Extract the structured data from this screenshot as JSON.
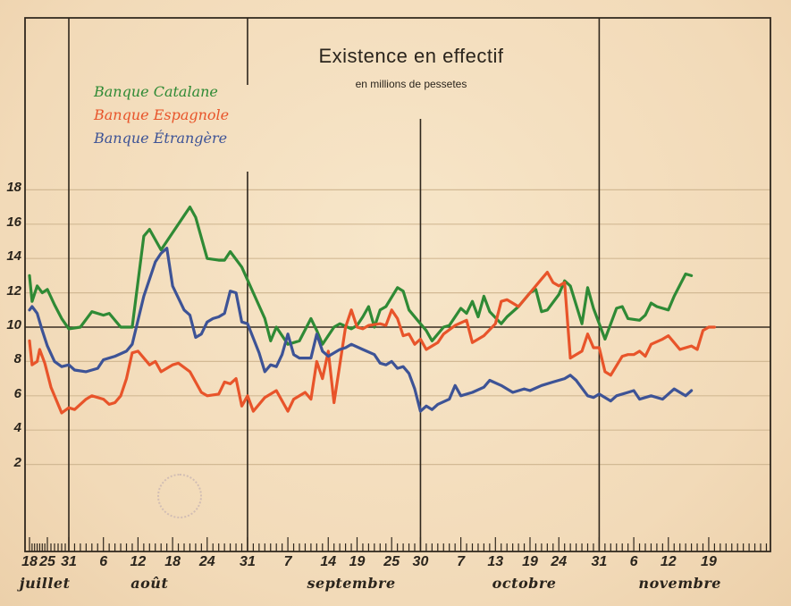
{
  "chart_data": {
    "type": "line",
    "title": "Existence en effectif",
    "subtitle": "en millions de pessetes",
    "xlabel": "",
    "ylabel": "",
    "ylim": [
      0,
      20
    ],
    "grid": true,
    "legend_placement": "top-left",
    "reference_line": 10,
    "y_ticks": [
      "2",
      "4",
      "6",
      "8",
      "10",
      "12",
      "14",
      "16",
      "18"
    ],
    "y_tick_values": [
      2,
      4,
      6,
      8,
      10,
      12,
      14,
      16,
      18
    ],
    "x_unit": "days since 18 juillet",
    "x_ticks": [
      {
        "label": "18",
        "day": 0
      },
      {
        "label": "25",
        "day": 7
      },
      {
        "label": "31",
        "day": 13
      },
      {
        "label": "6",
        "day": 19
      },
      {
        "label": "12",
        "day": 25
      },
      {
        "label": "18",
        "day": 31
      },
      {
        "label": "24",
        "day": 37
      },
      {
        "label": "31",
        "day": 44
      },
      {
        "label": "7",
        "day": 51
      },
      {
        "label": "14",
        "day": 58
      },
      {
        "label": "19",
        "day": 63
      },
      {
        "label": "25",
        "day": 69
      },
      {
        "label": "30",
        "day": 74
      },
      {
        "label": "7",
        "day": 81
      },
      {
        "label": "13",
        "day": 87
      },
      {
        "label": "19",
        "day": 93
      },
      {
        "label": "24",
        "day": 98
      },
      {
        "label": "31",
        "day": 105
      },
      {
        "label": "6",
        "day": 111
      },
      {
        "label": "12",
        "day": 117
      },
      {
        "label": "19",
        "day": 124
      }
    ],
    "months": [
      {
        "label": "juillet",
        "day": 6
      },
      {
        "label": "août",
        "day": 27
      },
      {
        "label": "septembre",
        "day": 62
      },
      {
        "label": "octobre",
        "day": 92
      },
      {
        "label": "novembre",
        "day": 119
      }
    ],
    "month_boundaries": [
      13,
      44,
      74,
      105
    ],
    "x_range": [
      -1,
      134
    ],
    "series": [
      {
        "name": "Banque Catalane",
        "color": "#2f8a35",
        "points": [
          [
            0,
            13.0
          ],
          [
            1,
            11.5
          ],
          [
            3,
            12.4
          ],
          [
            5,
            12.0
          ],
          [
            7,
            12.2
          ],
          [
            9,
            11.3
          ],
          [
            11,
            10.5
          ],
          [
            13,
            9.9
          ],
          [
            15,
            10.0
          ],
          [
            17,
            10.9
          ],
          [
            19,
            10.7
          ],
          [
            20,
            10.8
          ],
          [
            22,
            10.0
          ],
          [
            24,
            10.0
          ],
          [
            26,
            15.3
          ],
          [
            27,
            15.7
          ],
          [
            29,
            14.5
          ],
          [
            31,
            15.5
          ],
          [
            33,
            16.5
          ],
          [
            34,
            17.0
          ],
          [
            35,
            16.4
          ],
          [
            37,
            14.0
          ],
          [
            39,
            13.9
          ],
          [
            40,
            13.9
          ],
          [
            41,
            14.4
          ],
          [
            43,
            13.5
          ],
          [
            45,
            12.0
          ],
          [
            47,
            10.5
          ],
          [
            48,
            9.2
          ],
          [
            49,
            10.0
          ],
          [
            51,
            9.0
          ],
          [
            52,
            9.1
          ],
          [
            53,
            9.2
          ],
          [
            55,
            10.5
          ],
          [
            56,
            9.8
          ],
          [
            57,
            9.0
          ],
          [
            59,
            10.0
          ],
          [
            60,
            10.2
          ],
          [
            62,
            9.9
          ],
          [
            63,
            10.1
          ],
          [
            64,
            10.6
          ],
          [
            65,
            11.2
          ],
          [
            66,
            10.0
          ],
          [
            67,
            11.0
          ],
          [
            68,
            11.2
          ],
          [
            70,
            12.3
          ],
          [
            71,
            12.1
          ],
          [
            72,
            11.0
          ],
          [
            74,
            10.2
          ],
          [
            75,
            9.8
          ],
          [
            76,
            9.2
          ],
          [
            78,
            10.0
          ],
          [
            79,
            10.1
          ],
          [
            81,
            11.1
          ],
          [
            82,
            10.8
          ],
          [
            83,
            11.5
          ],
          [
            84,
            10.6
          ],
          [
            85,
            11.8
          ],
          [
            86,
            10.9
          ],
          [
            88,
            10.2
          ],
          [
            89,
            10.6
          ],
          [
            91,
            11.2
          ],
          [
            93,
            12.0
          ],
          [
            94,
            12.2
          ],
          [
            95,
            10.9
          ],
          [
            96,
            11.0
          ],
          [
            98,
            11.9
          ],
          [
            99,
            12.7
          ],
          [
            100,
            12.4
          ],
          [
            102,
            10.2
          ],
          [
            103,
            12.3
          ],
          [
            104,
            11.1
          ],
          [
            106,
            9.3
          ],
          [
            108,
            11.1
          ],
          [
            109,
            11.2
          ],
          [
            110,
            10.5
          ],
          [
            112,
            10.4
          ],
          [
            113,
            10.7
          ],
          [
            114,
            11.4
          ],
          [
            115,
            11.2
          ],
          [
            117,
            11.0
          ],
          [
            118,
            11.8
          ],
          [
            120,
            13.1
          ],
          [
            121,
            13.0
          ]
        ]
      },
      {
        "name": "Banque Espagnole",
        "color": "#e8542a",
        "points": [
          [
            0,
            9.2
          ],
          [
            1,
            7.8
          ],
          [
            3,
            8.0
          ],
          [
            4,
            8.7
          ],
          [
            6,
            7.9
          ],
          [
            8,
            6.5
          ],
          [
            11,
            5.0
          ],
          [
            13,
            5.3
          ],
          [
            14,
            5.2
          ],
          [
            16,
            5.8
          ],
          [
            17,
            6.0
          ],
          [
            19,
            5.8
          ],
          [
            20,
            5.5
          ],
          [
            21,
            5.6
          ],
          [
            22,
            6.0
          ],
          [
            23,
            7.0
          ],
          [
            24,
            8.5
          ],
          [
            25,
            8.6
          ],
          [
            27,
            7.8
          ],
          [
            28,
            8.0
          ],
          [
            29,
            7.4
          ],
          [
            31,
            7.8
          ],
          [
            32,
            7.9
          ],
          [
            34,
            7.4
          ],
          [
            36,
            6.2
          ],
          [
            37,
            6.0
          ],
          [
            39,
            6.1
          ],
          [
            40,
            6.8
          ],
          [
            41,
            6.7
          ],
          [
            42,
            7.0
          ],
          [
            43,
            5.4
          ],
          [
            44,
            6.0
          ],
          [
            45,
            5.1
          ],
          [
            47,
            5.9
          ],
          [
            49,
            6.3
          ],
          [
            51,
            5.1
          ],
          [
            52,
            5.8
          ],
          [
            54,
            6.2
          ],
          [
            55,
            5.8
          ],
          [
            56,
            8.0
          ],
          [
            57,
            7.0
          ],
          [
            58,
            8.6
          ],
          [
            59,
            5.6
          ],
          [
            61,
            10.0
          ],
          [
            62,
            11.0
          ],
          [
            63,
            10.0
          ],
          [
            64,
            9.9
          ],
          [
            65,
            10.1
          ],
          [
            67,
            10.2
          ],
          [
            68,
            10.1
          ],
          [
            69,
            11.0
          ],
          [
            70,
            10.5
          ],
          [
            71,
            9.5
          ],
          [
            72,
            9.6
          ],
          [
            73,
            9.0
          ],
          [
            74,
            9.3
          ],
          [
            75,
            8.7
          ],
          [
            77,
            9.1
          ],
          [
            78,
            9.6
          ],
          [
            80,
            10.1
          ],
          [
            82,
            10.4
          ],
          [
            83,
            9.1
          ],
          [
            85,
            9.5
          ],
          [
            87,
            10.2
          ],
          [
            88,
            11.5
          ],
          [
            89,
            11.6
          ],
          [
            91,
            11.2
          ],
          [
            93,
            12.0
          ],
          [
            95,
            12.8
          ],
          [
            96,
            13.2
          ],
          [
            97,
            12.6
          ],
          [
            98,
            12.4
          ],
          [
            99,
            12.6
          ],
          [
            100,
            8.2
          ],
          [
            102,
            8.6
          ],
          [
            103,
            9.6
          ],
          [
            104,
            8.8
          ],
          [
            105,
            8.8
          ],
          [
            106,
            7.4
          ],
          [
            107,
            7.2
          ],
          [
            109,
            8.3
          ],
          [
            110,
            8.4
          ],
          [
            111,
            8.4
          ],
          [
            112,
            8.6
          ],
          [
            113,
            8.3
          ],
          [
            114,
            9.0
          ],
          [
            116,
            9.3
          ],
          [
            117,
            9.5
          ],
          [
            119,
            8.7
          ],
          [
            121,
            8.9
          ],
          [
            122,
            8.7
          ],
          [
            123,
            9.8
          ],
          [
            124,
            10.0
          ],
          [
            125,
            10.0
          ]
        ]
      },
      {
        "name": "Banque Étrangère",
        "color": "#3d5396",
        "points": [
          [
            0,
            11.0
          ],
          [
            1,
            11.2
          ],
          [
            3,
            10.8
          ],
          [
            5,
            9.8
          ],
          [
            7,
            8.9
          ],
          [
            9,
            8.0
          ],
          [
            11,
            7.7
          ],
          [
            13,
            7.8
          ],
          [
            14,
            7.5
          ],
          [
            16,
            7.4
          ],
          [
            18,
            7.6
          ],
          [
            19,
            8.1
          ],
          [
            21,
            8.3
          ],
          [
            23,
            8.6
          ],
          [
            24,
            9.0
          ],
          [
            26,
            11.8
          ],
          [
            28,
            13.8
          ],
          [
            29,
            14.3
          ],
          [
            30,
            14.6
          ],
          [
            31,
            12.4
          ],
          [
            33,
            11.0
          ],
          [
            34,
            10.7
          ],
          [
            35,
            9.4
          ],
          [
            36,
            9.6
          ],
          [
            37,
            10.3
          ],
          [
            38,
            10.5
          ],
          [
            39,
            10.6
          ],
          [
            40,
            10.8
          ],
          [
            41,
            12.1
          ],
          [
            42,
            12.0
          ],
          [
            43,
            10.3
          ],
          [
            44,
            10.2
          ],
          [
            46,
            8.5
          ],
          [
            47,
            7.4
          ],
          [
            48,
            7.8
          ],
          [
            49,
            7.7
          ],
          [
            50,
            8.4
          ],
          [
            51,
            9.6
          ],
          [
            52,
            8.4
          ],
          [
            53,
            8.2
          ],
          [
            55,
            8.2
          ],
          [
            56,
            9.6
          ],
          [
            57,
            8.6
          ],
          [
            58,
            8.3
          ],
          [
            60,
            8.7
          ],
          [
            61,
            8.8
          ],
          [
            62,
            9.0
          ],
          [
            64,
            8.7
          ],
          [
            66,
            8.4
          ],
          [
            67,
            7.9
          ],
          [
            68,
            7.8
          ],
          [
            69,
            8.0
          ],
          [
            70,
            7.6
          ],
          [
            71,
            7.7
          ],
          [
            72,
            7.3
          ],
          [
            73,
            6.4
          ],
          [
            74,
            5.1
          ],
          [
            75,
            5.4
          ],
          [
            76,
            5.2
          ],
          [
            77,
            5.5
          ],
          [
            79,
            5.8
          ],
          [
            80,
            6.6
          ],
          [
            81,
            6.0
          ],
          [
            83,
            6.2
          ],
          [
            85,
            6.5
          ],
          [
            86,
            6.9
          ],
          [
            88,
            6.6
          ],
          [
            90,
            6.2
          ],
          [
            92,
            6.4
          ],
          [
            93,
            6.3
          ],
          [
            95,
            6.6
          ],
          [
            97,
            6.8
          ],
          [
            99,
            7.0
          ],
          [
            100,
            7.2
          ],
          [
            101,
            6.9
          ],
          [
            103,
            6.0
          ],
          [
            104,
            5.9
          ],
          [
            105,
            6.1
          ],
          [
            107,
            5.7
          ],
          [
            108,
            6.0
          ],
          [
            110,
            6.2
          ],
          [
            111,
            6.3
          ],
          [
            112,
            5.8
          ],
          [
            113,
            5.9
          ],
          [
            114,
            6.0
          ],
          [
            116,
            5.8
          ],
          [
            118,
            6.4
          ],
          [
            120,
            6.0
          ],
          [
            121,
            6.3
          ]
        ]
      }
    ]
  },
  "stamp_label": ""
}
